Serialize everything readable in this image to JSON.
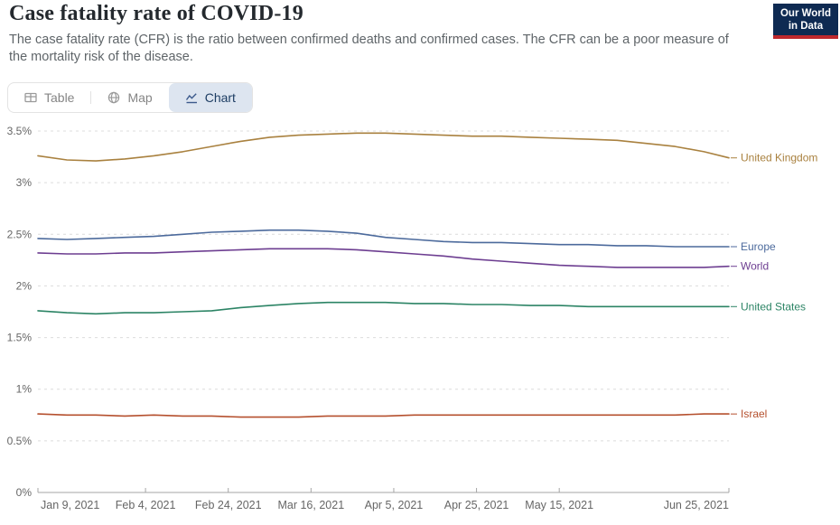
{
  "header": {
    "title": "Case fatality rate of COVID-19",
    "subtitle": "The case fatality rate (CFR) is the ratio between confirmed deaths and confirmed cases. The CFR can be a poor measure of the mortality risk of the disease.",
    "logo": {
      "line1": "Our World",
      "line2": "in Data"
    }
  },
  "tabs": [
    {
      "label": "Table",
      "icon": "table-icon",
      "active": false
    },
    {
      "label": "Map",
      "icon": "globe-icon",
      "active": false
    },
    {
      "label": "Chart",
      "icon": "line-chart-icon",
      "active": true
    }
  ],
  "colors": {
    "logo_bg": "#0E2A52",
    "logo_accent": "#BE282D",
    "active_tab_bg": "#dde5f0",
    "active_tab_text": "#1d3d63",
    "gridline": "#dcdcdc",
    "axis": "#a5a5a5",
    "tick_text": "#666666"
  },
  "chart_data": {
    "type": "line",
    "title": "Case fatality rate of COVID-19",
    "unit": "%",
    "grid": "dashed-horizontal",
    "legend_position": "right-of-line-end",
    "x_axis": {
      "start_date": "Jan 9, 2021",
      "end_date": "Jun 25, 2021",
      "max_day": 167,
      "tick_labels": [
        "Jan 9, 2021",
        "Feb 4, 2021",
        "Feb 24, 2021",
        "Mar 16, 2021",
        "Apr 5, 2021",
        "Apr 25, 2021",
        "May 15, 2021",
        "Jun 25, 2021"
      ],
      "tick_days": [
        0,
        26,
        46,
        66,
        86,
        106,
        126,
        167
      ]
    },
    "y_axis": {
      "range": [
        0,
        3.5
      ],
      "tick_values": [
        3.5,
        3,
        2.5,
        2,
        1.5,
        1,
        0.5,
        0
      ],
      "tick_labels": [
        "3.5%",
        "3%",
        "2.5%",
        "2%",
        "1.5%",
        "1%",
        "0.5%",
        "0%"
      ]
    },
    "days": [
      0,
      7,
      14,
      21,
      28,
      35,
      42,
      49,
      56,
      63,
      70,
      77,
      84,
      91,
      98,
      105,
      112,
      119,
      126,
      133,
      140,
      147,
      154,
      161,
      167
    ],
    "series": [
      {
        "name": "United Kingdom",
        "color": "#A9813F",
        "values": [
          3.26,
          3.22,
          3.21,
          3.23,
          3.26,
          3.3,
          3.35,
          3.4,
          3.44,
          3.46,
          3.47,
          3.48,
          3.48,
          3.47,
          3.46,
          3.45,
          3.45,
          3.44,
          3.43,
          3.42,
          3.41,
          3.38,
          3.35,
          3.3,
          3.24
        ]
      },
      {
        "name": "Europe",
        "color": "#4C6A9C",
        "values": [
          2.46,
          2.45,
          2.46,
          2.47,
          2.48,
          2.5,
          2.52,
          2.53,
          2.54,
          2.54,
          2.53,
          2.51,
          2.47,
          2.45,
          2.43,
          2.42,
          2.42,
          2.41,
          2.4,
          2.4,
          2.39,
          2.39,
          2.38,
          2.38,
          2.38
        ]
      },
      {
        "name": "World",
        "color": "#6D3E91",
        "values": [
          2.32,
          2.31,
          2.31,
          2.32,
          2.32,
          2.33,
          2.34,
          2.35,
          2.36,
          2.36,
          2.36,
          2.35,
          2.33,
          2.31,
          2.29,
          2.26,
          2.24,
          2.22,
          2.2,
          2.19,
          2.18,
          2.18,
          2.18,
          2.18,
          2.19
        ]
      },
      {
        "name": "United States",
        "color": "#2C8465",
        "values": [
          1.76,
          1.74,
          1.73,
          1.74,
          1.74,
          1.75,
          1.76,
          1.79,
          1.81,
          1.83,
          1.84,
          1.84,
          1.84,
          1.83,
          1.83,
          1.82,
          1.82,
          1.81,
          1.81,
          1.8,
          1.8,
          1.8,
          1.8,
          1.8,
          1.8
        ]
      },
      {
        "name": "Israel",
        "color": "#B5502E",
        "values": [
          0.76,
          0.75,
          0.75,
          0.74,
          0.75,
          0.74,
          0.74,
          0.73,
          0.73,
          0.73,
          0.74,
          0.74,
          0.74,
          0.75,
          0.75,
          0.75,
          0.75,
          0.75,
          0.75,
          0.75,
          0.75,
          0.75,
          0.75,
          0.76,
          0.76
        ]
      }
    ]
  }
}
